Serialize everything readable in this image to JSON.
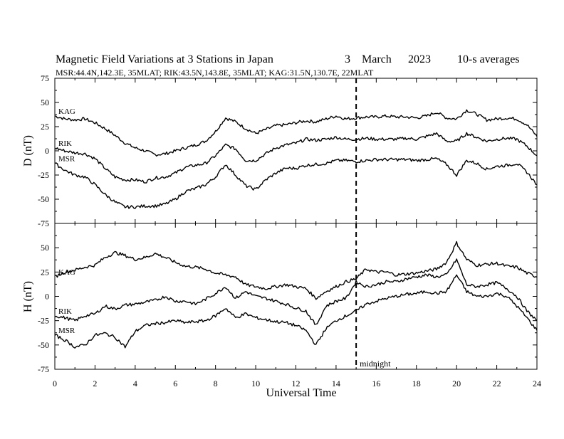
{
  "header": {
    "title": "Magnetic Field Variations at 3 Stations in Japan",
    "day": "3",
    "month": "March",
    "year": "2023",
    "averaging": "10-s averages",
    "stations_line": "MSR:44.4N,142.3E, 35MLAT;  RIK:43.5N,143.8E, 35MLAT;  KAG:31.5N,130.7E, 22MLAT"
  },
  "chart_data": {
    "type": "line",
    "xlabel": "Universal Time",
    "xlim": [
      0,
      24
    ],
    "x_ticks": [
      "0",
      "2",
      "4",
      "6",
      "8",
      "10",
      "12",
      "14",
      "16",
      "18",
      "20",
      "22",
      "24"
    ],
    "annotations": [
      {
        "x": 15,
        "label": "midnight",
        "style": "dashed"
      }
    ],
    "panels": [
      {
        "ylabel": "D (nT)",
        "ylim": [
          -75,
          75
        ],
        "y_ticks": [
          "75",
          "50",
          "25",
          "0",
          "-25",
          "-50",
          "-75"
        ],
        "x": [
          0,
          0.5,
          1,
          1.5,
          2,
          2.5,
          3,
          3.5,
          4,
          4.5,
          5,
          5.5,
          6,
          6.5,
          7,
          7.5,
          8,
          8.5,
          9,
          9.5,
          10,
          10.5,
          11,
          11.5,
          12,
          12.5,
          13,
          13.5,
          14,
          14.5,
          15,
          15.5,
          16,
          16.5,
          17,
          17.5,
          18,
          18.5,
          19,
          19.5,
          20,
          20.5,
          21,
          21.5,
          22,
          22.5,
          23,
          23.5,
          24
        ],
        "series": [
          {
            "name": "KAG",
            "values": [
              36,
              33,
              32,
              33,
              29,
              23,
              16,
              8,
              3,
              0,
              -4,
              -3,
              0,
              3,
              6,
              10,
              20,
              34,
              30,
              23,
              18,
              22,
              26,
              27,
              29,
              31,
              30,
              33,
              36,
              33,
              34,
              35,
              35,
              36,
              35,
              35,
              34,
              36,
              40,
              34,
              33,
              42,
              38,
              32,
              33,
              34,
              33,
              27,
              15
            ]
          },
          {
            "name": "RIK",
            "values": [
              3,
              0,
              -2,
              -3,
              -8,
              -18,
              -27,
              -30,
              -30,
              -32,
              -28,
              -27,
              -23,
              -17,
              -15,
              -13,
              -5,
              6,
              2,
              -10,
              -10,
              -3,
              3,
              6,
              8,
              12,
              11,
              12,
              14,
              12,
              12,
              13,
              12,
              12,
              12,
              13,
              12,
              15,
              18,
              10,
              10,
              18,
              14,
              10,
              12,
              13,
              12,
              5,
              -5
            ]
          },
          {
            "name": "MSR",
            "values": [
              -13,
              -20,
              -25,
              -27,
              -35,
              -45,
              -53,
              -58,
              -58,
              -57,
              -57,
              -55,
              -50,
              -42,
              -39,
              -35,
              -27,
              -14,
              -25,
              -36,
              -40,
              -30,
              -23,
              -18,
              -18,
              -15,
              -14,
              -13,
              -10,
              -10,
              -11,
              -10,
              -9,
              -9,
              -9,
              -9,
              -10,
              -9,
              -8,
              -14,
              -25,
              -10,
              -13,
              -19,
              -16,
              -15,
              -13,
              -22,
              -35
            ]
          }
        ]
      },
      {
        "ylabel": "H (nT)",
        "ylim": [
          -75,
          75
        ],
        "y_ticks": [
          "50",
          "25",
          "0",
          "-25",
          "-50",
          "-75"
        ],
        "x": [
          0,
          0.5,
          1,
          1.5,
          2,
          2.5,
          3,
          3.5,
          4,
          4.5,
          5,
          5.5,
          6,
          6.5,
          7,
          7.5,
          8,
          8.5,
          9,
          9.5,
          10,
          10.5,
          11,
          11.5,
          12,
          12.5,
          13,
          13.5,
          14,
          14.5,
          15,
          15.5,
          16,
          16.5,
          17,
          17.5,
          18,
          18.5,
          19,
          19.5,
          20,
          20.5,
          21,
          21.5,
          22,
          22.5,
          23,
          23.5,
          24
        ],
        "series": [
          {
            "name": "KAG",
            "values": [
              20,
              25,
              27,
              30,
              32,
              40,
              45,
              42,
              38,
              40,
              44,
              40,
              35,
              31,
              30,
              28,
              24,
              22,
              20,
              12,
              10,
              8,
              10,
              12,
              10,
              8,
              -2,
              5,
              10,
              15,
              18,
              28,
              25,
              25,
              22,
              23,
              24,
              26,
              28,
              35,
              55,
              38,
              32,
              33,
              34,
              31,
              30,
              24,
              20
            ]
          },
          {
            "name": "RIK",
            "values": [
              -20,
              -22,
              -25,
              -20,
              -18,
              -10,
              -13,
              -9,
              -8,
              -6,
              -4,
              0,
              -5,
              -5,
              -8,
              -3,
              3,
              10,
              -2,
              5,
              0,
              -2,
              -5,
              -8,
              -12,
              -15,
              -30,
              -10,
              -5,
              -2,
              15,
              10,
              12,
              15,
              15,
              18,
              20,
              22,
              20,
              22,
              38,
              12,
              10,
              12,
              14,
              8,
              0,
              -15,
              -25
            ]
          },
          {
            "name": "MSR",
            "values": [
              -40,
              -45,
              -52,
              -50,
              -40,
              -38,
              -42,
              -52,
              -36,
              -30,
              -28,
              -27,
              -25,
              -27,
              -26,
              -25,
              -20,
              -12,
              -22,
              -18,
              -22,
              -24,
              -26,
              -27,
              -30,
              -35,
              -50,
              -33,
              -25,
              -20,
              -15,
              -8,
              -5,
              -2,
              0,
              2,
              3,
              5,
              3,
              5,
              22,
              5,
              0,
              0,
              3,
              0,
              -10,
              -22,
              -35
            ]
          }
        ]
      }
    ]
  }
}
